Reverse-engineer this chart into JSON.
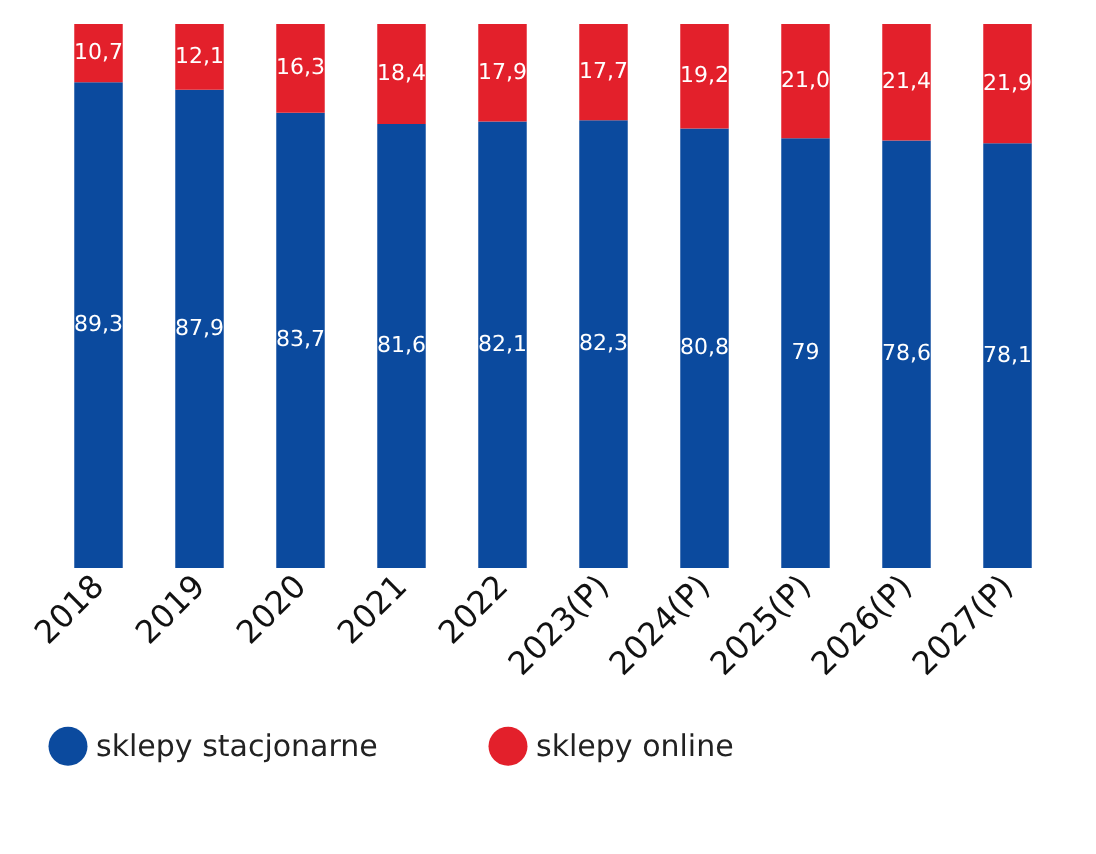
{
  "chart_data": {
    "type": "bar",
    "stacked": true,
    "categories": [
      "2018",
      "2019",
      "2020",
      "2021",
      "2022",
      "2023(P)",
      "2024(P)",
      "2025(P)",
      "2026(P)",
      "2027(P)"
    ],
    "series": [
      {
        "name": "sklepy  stacjonarne",
        "color": "#0b4a9e",
        "values": [
          89.3,
          87.9,
          83.7,
          81.6,
          82.1,
          82.3,
          80.8,
          79,
          78.6,
          78.1
        ],
        "value_labels": [
          "89,3",
          "87,9",
          "83,7",
          "81,6",
          "82,1",
          "82,3",
          "80,8",
          "79",
          "78,6",
          "78,1"
        ]
      },
      {
        "name": "sklepy online",
        "color": "#e3202b",
        "values": [
          10.7,
          12.1,
          16.3,
          18.4,
          17.9,
          17.7,
          19.2,
          21.0,
          21.4,
          21.9
        ],
        "value_labels": [
          "10,7",
          "12,1",
          "16,3",
          "18,4",
          "17,9",
          "17,7",
          "19,2",
          "21,0",
          "21,4",
          "21,9"
        ]
      }
    ],
    "legend": "bottom",
    "grid": false
  }
}
